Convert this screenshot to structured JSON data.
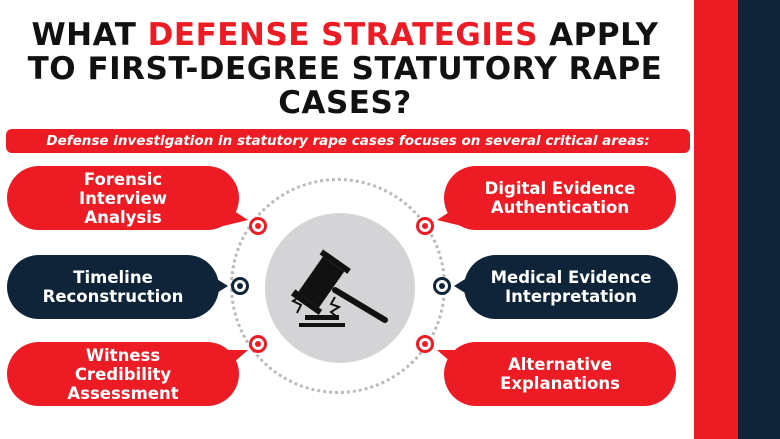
{
  "title": {
    "line1_pre": "WHAT ",
    "line1_accent": "DEFENSE STRATEGIES",
    "line1_post": " APPLY",
    "line2": "TO FIRST-DEGREE STATUTORY RAPE",
    "line3": "CASES?"
  },
  "subtitle": "Defense investigation in statutory rape cases focuses on several critical areas:",
  "left_items": [
    {
      "label": "Forensic Interview Analysis",
      "color": "#ED1C24"
    },
    {
      "label": "Timeline Reconstruction",
      "color": "#0F2438"
    },
    {
      "label": "Witness Credibility Assessment",
      "color": "#ED1C24"
    }
  ],
  "right_items": [
    {
      "label": "Digital Evidence Authentication",
      "color": "#ED1C24"
    },
    {
      "label": "Medical Evidence Interpretation",
      "color": "#0F2438"
    },
    {
      "label": "Alternative Explanations",
      "color": "#ED1C24"
    }
  ],
  "center_icon": "gavel-icon",
  "colors": {
    "red": "#ED1C24",
    "navy": "#0F2438",
    "gray": "#d4d4d6"
  }
}
